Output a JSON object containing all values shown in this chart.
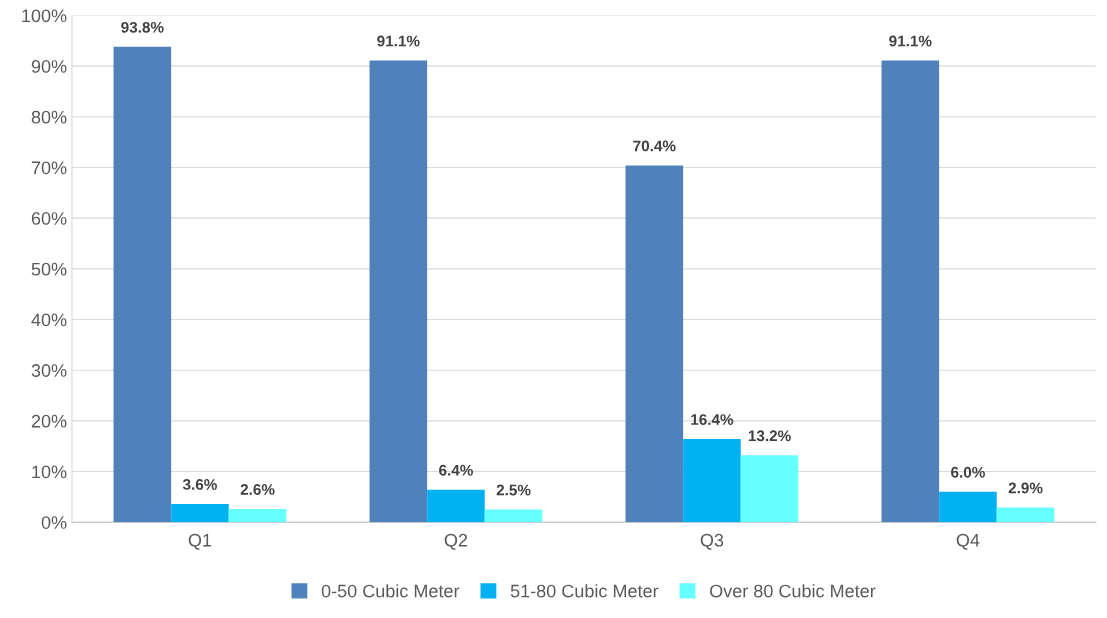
{
  "chart_data": {
    "type": "bar",
    "categories": [
      "Q1",
      "Q2",
      "Q3",
      "Q4"
    ],
    "series": [
      {
        "name": "0-50 Cubic Meter",
        "color": "#4f81bd",
        "values": [
          93.8,
          91.1,
          70.4,
          91.1
        ],
        "value_labels": [
          "93.8%",
          "91.1%",
          "70.4%",
          "91.1%"
        ]
      },
      {
        "name": "51-80 Cubic Meter",
        "color": "#00b0f0",
        "values": [
          3.6,
          6.4,
          16.4,
          6.0
        ],
        "value_labels": [
          "3.6%",
          "6.4%",
          "16.4%",
          "6.0%"
        ]
      },
      {
        "name": "Over 80 Cubic Meter",
        "color": "#66ffff",
        "values": [
          2.6,
          2.5,
          13.2,
          2.9
        ],
        "value_labels": [
          "2.6%",
          "2.5%",
          "13.2%",
          "2.9%"
        ]
      }
    ],
    "ylim": [
      0,
      100
    ],
    "yticks": [
      {
        "value": 0,
        "label": "0%"
      },
      {
        "value": 10,
        "label": "10%"
      },
      {
        "value": 20,
        "label": "20%"
      },
      {
        "value": 30,
        "label": "30%"
      },
      {
        "value": 40,
        "label": "40%"
      },
      {
        "value": 50,
        "label": "50%"
      },
      {
        "value": 60,
        "label": "60%"
      },
      {
        "value": 70,
        "label": "70%"
      },
      {
        "value": 80,
        "label": "80%"
      },
      {
        "value": 90,
        "label": "90%"
      },
      {
        "value": 100,
        "label": "100%"
      }
    ],
    "grid": "y",
    "legend": "bottom"
  }
}
